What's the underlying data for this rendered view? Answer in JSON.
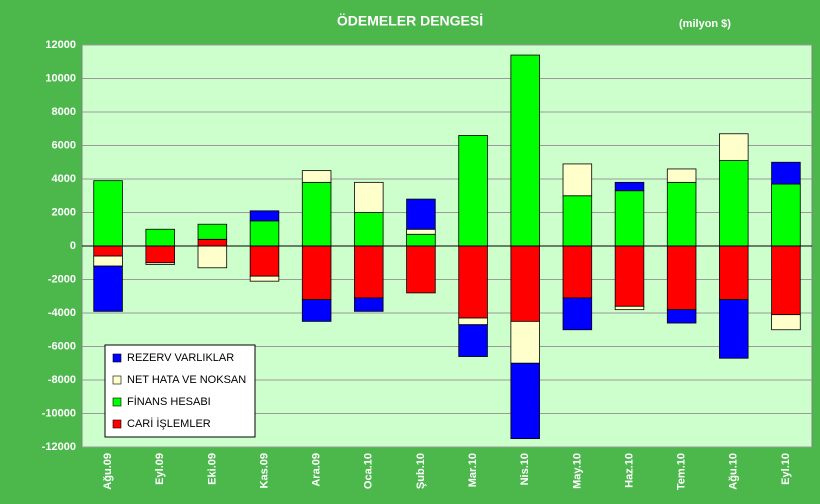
{
  "chart_data": {
    "type": "stacked_bar",
    "title": "ÖDEMELER DENGESİ",
    "subtitle": "(milyon $)",
    "categories": [
      "Ağu.09",
      "Eyl.09",
      "Eki.09",
      "Kas.09",
      "Ara.09",
      "Oca.10",
      "Şub.10",
      "Mar.10",
      "Nis.10",
      "May.10",
      "Haz.10",
      "Tem.10",
      "Ağu.10",
      "Eyl.10"
    ],
    "series": [
      {
        "name": "CARİ İŞLEMLER",
        "color": "#ff0000",
        "values": [
          -600,
          -1000,
          400,
          -1800,
          -3200,
          -3100,
          -2800,
          -4300,
          -4500,
          -3100,
          -3600,
          -3800,
          -3200,
          -4100
        ]
      },
      {
        "name": "FİNANS HESABI",
        "color": "#00ff00",
        "values": [
          3900,
          1000,
          900,
          1500,
          3800,
          2000,
          700,
          6600,
          11400,
          3000,
          3300,
          3800,
          5100,
          3700
        ]
      },
      {
        "name": "NET HATA VE NOKSAN",
        "color": "#ffffcc",
        "values": [
          -600,
          -100,
          -1300,
          -300,
          700,
          1800,
          300,
          -400,
          -2500,
          1900,
          -200,
          800,
          1600,
          -900
        ]
      },
      {
        "name": "REZERV VARLIKLAR",
        "color": "#0000ff",
        "values": [
          -2700,
          0,
          0,
          600,
          -1300,
          -800,
          1800,
          -1900,
          -4500,
          -1900,
          500,
          -800,
          -3500,
          1300
        ]
      }
    ],
    "ylim": [
      -12000,
      12000
    ],
    "yticks": [
      -12000,
      -10000,
      -8000,
      -6000,
      -4000,
      -2000,
      0,
      2000,
      4000,
      6000,
      8000,
      10000,
      12000
    ],
    "grid": true,
    "legend": "lower left"
  }
}
